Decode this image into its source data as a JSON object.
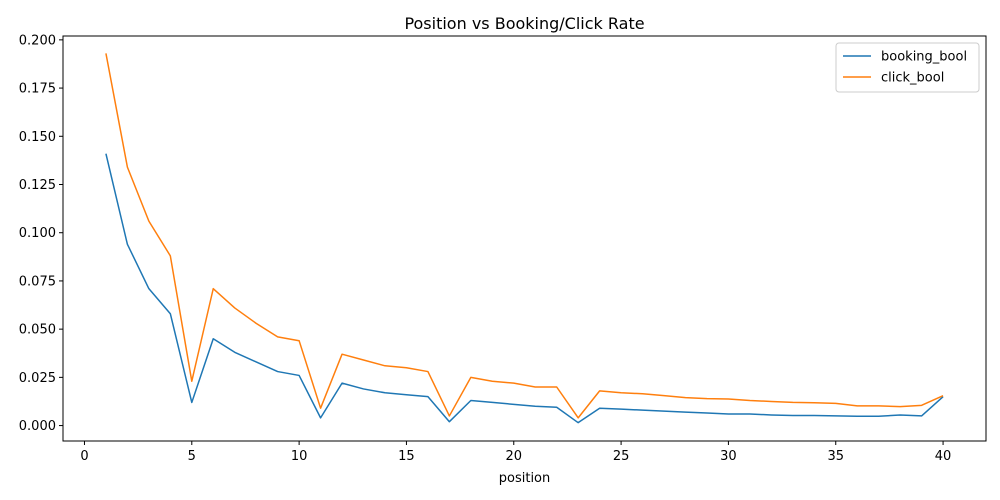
{
  "chart_data": {
    "type": "line",
    "title": "Position vs Booking/Click Rate",
    "xlabel": "position",
    "ylabel": "",
    "xlim": [
      -1,
      42
    ],
    "ylim": [
      -0.008,
      0.202
    ],
    "xticks": [
      0,
      5,
      10,
      15,
      20,
      25,
      30,
      35,
      40
    ],
    "xtick_labels": [
      "0",
      "5",
      "10",
      "15",
      "20",
      "25",
      "30",
      "35",
      "40"
    ],
    "yticks": [
      0.0,
      0.025,
      0.05,
      0.075,
      0.1,
      0.125,
      0.15,
      0.175,
      0.2
    ],
    "ytick_labels": [
      "0.000",
      "0.025",
      "0.050",
      "0.075",
      "0.100",
      "0.125",
      "0.150",
      "0.175",
      "0.200"
    ],
    "grid": false,
    "legend_position": "top-right",
    "x": [
      1,
      2,
      3,
      4,
      5,
      6,
      7,
      8,
      9,
      10,
      11,
      12,
      13,
      14,
      15,
      16,
      17,
      18,
      19,
      20,
      21,
      22,
      23,
      24,
      25,
      26,
      27,
      28,
      29,
      30,
      31,
      32,
      33,
      34,
      35,
      36,
      37,
      38,
      39,
      40
    ],
    "series": [
      {
        "name": "booking_bool",
        "color": "#1f77b4",
        "values": [
          0.141,
          0.094,
          0.071,
          0.058,
          0.012,
          0.045,
          0.038,
          0.033,
          0.028,
          0.026,
          0.004,
          0.022,
          0.019,
          0.017,
          0.016,
          0.015,
          0.002,
          0.013,
          0.012,
          0.011,
          0.01,
          0.0095,
          0.0015,
          0.009,
          0.0085,
          0.008,
          0.0075,
          0.007,
          0.0065,
          0.006,
          0.006,
          0.0055,
          0.0052,
          0.0052,
          0.005,
          0.0048,
          0.0048,
          0.0055,
          0.005,
          0.015
        ]
      },
      {
        "name": "click_bool",
        "color": "#ff7f0e",
        "values": [
          0.193,
          0.134,
          0.106,
          0.088,
          0.023,
          0.071,
          0.061,
          0.053,
          0.046,
          0.044,
          0.009,
          0.037,
          0.034,
          0.031,
          0.03,
          0.028,
          0.005,
          0.025,
          0.023,
          0.022,
          0.02,
          0.02,
          0.004,
          0.018,
          0.017,
          0.0165,
          0.0155,
          0.0145,
          0.014,
          0.0138,
          0.013,
          0.0125,
          0.012,
          0.0118,
          0.0115,
          0.0102,
          0.0102,
          0.0098,
          0.0105,
          0.0155
        ]
      }
    ]
  }
}
